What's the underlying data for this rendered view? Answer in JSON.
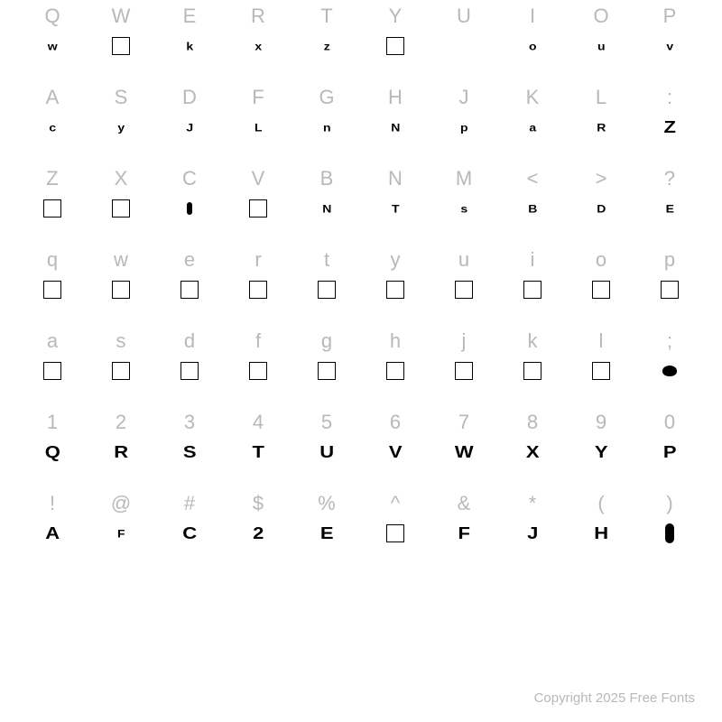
{
  "footer": "Copyright 2025 Free Fonts",
  "colors": {
    "label": "#b8b8b8",
    "glyph": "#000000",
    "background": "#ffffff"
  },
  "rows": [
    {
      "keys": [
        "Q",
        "W",
        "E",
        "R",
        "T",
        "Y",
        "U",
        "I",
        "O",
        "P"
      ],
      "glyphs": [
        {
          "type": "text",
          "v": "w"
        },
        {
          "type": "box"
        },
        {
          "type": "text",
          "v": "k"
        },
        {
          "type": "text",
          "v": "x"
        },
        {
          "type": "text",
          "v": "z"
        },
        {
          "type": "box"
        },
        {
          "type": "blank"
        },
        {
          "type": "text",
          "v": "o"
        },
        {
          "type": "text",
          "v": "u"
        },
        {
          "type": "text",
          "v": "v"
        }
      ]
    },
    {
      "keys": [
        "A",
        "S",
        "D",
        "F",
        "G",
        "H",
        "J",
        "K",
        "L",
        ":"
      ],
      "glyphs": [
        {
          "type": "text",
          "v": "c"
        },
        {
          "type": "text",
          "v": "y"
        },
        {
          "type": "text",
          "v": "J"
        },
        {
          "type": "text",
          "v": "L"
        },
        {
          "type": "text",
          "v": "n"
        },
        {
          "type": "text",
          "v": "N"
        },
        {
          "type": "text",
          "v": "p"
        },
        {
          "type": "text",
          "v": "a"
        },
        {
          "type": "text",
          "v": "R"
        },
        {
          "type": "text",
          "v": "Z",
          "big": true
        }
      ]
    },
    {
      "keys": [
        "Z",
        "X",
        "C",
        "V",
        "B",
        "N",
        "M",
        "<",
        ">",
        "?"
      ],
      "glyphs": [
        {
          "type": "box"
        },
        {
          "type": "box"
        },
        {
          "type": "tall"
        },
        {
          "type": "box"
        },
        {
          "type": "text",
          "v": "N"
        },
        {
          "type": "text",
          "v": "T"
        },
        {
          "type": "text",
          "v": "s"
        },
        {
          "type": "text",
          "v": "B"
        },
        {
          "type": "text",
          "v": "D"
        },
        {
          "type": "text",
          "v": "E"
        }
      ]
    },
    {
      "keys": [
        "q",
        "w",
        "e",
        "r",
        "t",
        "y",
        "u",
        "i",
        "o",
        "p"
      ],
      "glyphs": [
        {
          "type": "box"
        },
        {
          "type": "box"
        },
        {
          "type": "box"
        },
        {
          "type": "box"
        },
        {
          "type": "box"
        },
        {
          "type": "box"
        },
        {
          "type": "box"
        },
        {
          "type": "box"
        },
        {
          "type": "box"
        },
        {
          "type": "box"
        }
      ]
    },
    {
      "keys": [
        "a",
        "s",
        "d",
        "f",
        "g",
        "h",
        "j",
        "k",
        "l",
        ";"
      ],
      "glyphs": [
        {
          "type": "box"
        },
        {
          "type": "box"
        },
        {
          "type": "box"
        },
        {
          "type": "box"
        },
        {
          "type": "box"
        },
        {
          "type": "box"
        },
        {
          "type": "box"
        },
        {
          "type": "box"
        },
        {
          "type": "box"
        },
        {
          "type": "blob"
        }
      ]
    },
    {
      "keys": [
        "1",
        "2",
        "3",
        "4",
        "5",
        "6",
        "7",
        "8",
        "9",
        "0"
      ],
      "glyphs": [
        {
          "type": "text",
          "v": "Q",
          "big": true
        },
        {
          "type": "text",
          "v": "R",
          "big": true
        },
        {
          "type": "text",
          "v": "S",
          "big": true
        },
        {
          "type": "text",
          "v": "T",
          "big": true
        },
        {
          "type": "text",
          "v": "U",
          "big": true
        },
        {
          "type": "text",
          "v": "V",
          "big": true
        },
        {
          "type": "text",
          "v": "W",
          "big": true
        },
        {
          "type": "text",
          "v": "X",
          "big": true
        },
        {
          "type": "text",
          "v": "Y",
          "big": true
        },
        {
          "type": "text",
          "v": "P",
          "big": true
        }
      ]
    },
    {
      "keys": [
        "!",
        "@",
        "#",
        "$",
        "%",
        "^",
        "&",
        "*",
        "(",
        ")"
      ],
      "glyphs": [
        {
          "type": "text",
          "v": "A",
          "big": true
        },
        {
          "type": "text",
          "v": "F"
        },
        {
          "type": "text",
          "v": "C",
          "big": true
        },
        {
          "type": "text",
          "v": "2",
          "big": true
        },
        {
          "type": "text",
          "v": "E",
          "big": true
        },
        {
          "type": "box"
        },
        {
          "type": "text",
          "v": "F",
          "big": true
        },
        {
          "type": "text",
          "v": "J",
          "big": true
        },
        {
          "type": "text",
          "v": "H",
          "big": true
        },
        {
          "type": "tall",
          "big": true
        }
      ]
    }
  ]
}
